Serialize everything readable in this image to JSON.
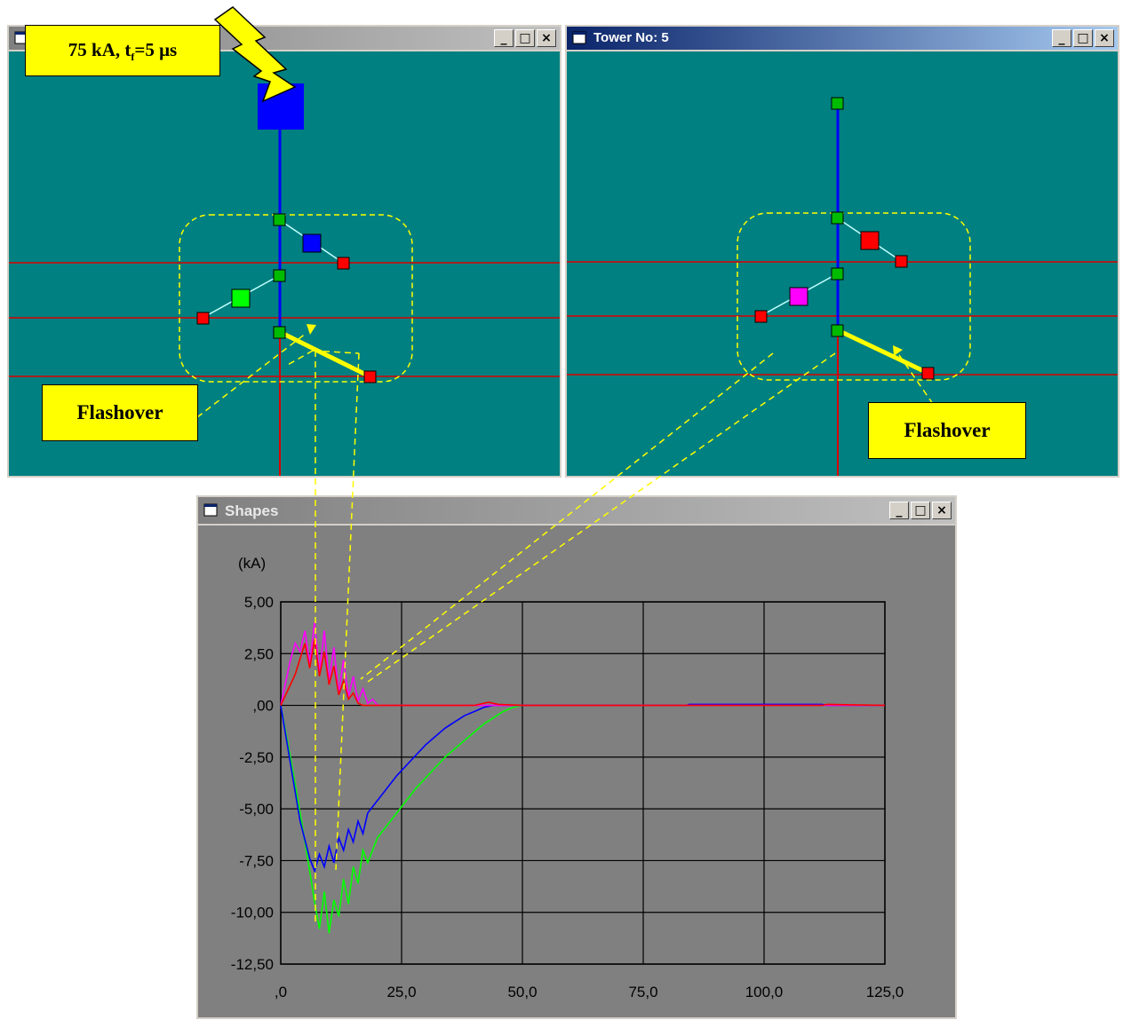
{
  "colors": {
    "teal": "#008080",
    "chart_bg": "#808080",
    "red_line": "#dd0000",
    "blue": "#0000ff",
    "green": "#00ff00",
    "magenta": "#ff00ff",
    "yellow": "#ffff00",
    "title_active": "#0a246a",
    "title_inactive": "#808080"
  },
  "lightning_label": "75 kA, t",
  "lightning_sub": "f",
  "lightning_rest": "=5 μs",
  "windows": {
    "left": {
      "title": ""
    },
    "right": {
      "title": "Tower No: 5"
    },
    "shapes": {
      "title": "Shapes"
    }
  },
  "flashover_left": "Flashover",
  "flashover_right": "Flashover",
  "window_buttons": {
    "minimize": "_",
    "maximize": "□",
    "close": "×"
  },
  "chart_data": {
    "type": "line",
    "title": "",
    "ylabel": "(kA)",
    "xlabel": "",
    "xlim": [
      0,
      125
    ],
    "ylim": [
      -12.5,
      5
    ],
    "x_ticks": [
      ",0",
      "25,0",
      "50,0",
      "75,0",
      "100,0",
      "125,0"
    ],
    "y_ticks": [
      "5,00",
      "2,50",
      ",00",
      "-2,50",
      "-5,00",
      "-7,50",
      "-10,00",
      "-12,50"
    ],
    "grid": true,
    "series": [
      {
        "color": "#00ff00",
        "x": [
          0,
          2,
          4,
          6,
          7,
          8,
          9,
          10,
          11,
          12,
          13,
          14,
          15,
          16,
          17,
          18,
          20,
          22,
          24,
          26,
          28,
          30,
          32,
          34,
          36,
          38,
          40,
          42,
          44,
          46,
          48,
          50,
          125
        ],
        "y": [
          0,
          -2.5,
          -5.2,
          -8.0,
          -9.5,
          -10.8,
          -9.0,
          -11.0,
          -9.4,
          -10.2,
          -8.4,
          -9.6,
          -7.8,
          -8.6,
          -7.0,
          -7.6,
          -6.4,
          -5.8,
          -5.2,
          -4.6,
          -4.0,
          -3.5,
          -3.0,
          -2.5,
          -2.1,
          -1.7,
          -1.3,
          -0.9,
          -0.6,
          -0.3,
          -0.1,
          0,
          0
        ]
      },
      {
        "color": "#0000ff",
        "x": [
          0,
          2,
          4,
          6,
          7,
          8,
          9,
          10,
          11,
          12,
          13,
          14,
          15,
          16,
          17,
          18,
          20,
          22,
          24,
          26,
          28,
          30,
          32,
          34,
          36,
          38,
          40,
          42,
          44,
          46,
          48,
          50,
          84,
          84.5,
          112,
          113,
          125
        ],
        "y": [
          0,
          -2.8,
          -5.6,
          -7.4,
          -8.0,
          -7.2,
          -7.8,
          -6.8,
          -7.6,
          -6.4,
          -7.0,
          -6.0,
          -6.6,
          -5.6,
          -6.2,
          -5.2,
          -4.6,
          -4.0,
          -3.4,
          -2.9,
          -2.4,
          -1.9,
          -1.5,
          -1.1,
          -0.8,
          -0.5,
          -0.3,
          -0.1,
          0,
          0,
          0,
          0,
          0,
          0.05,
          0.05,
          0,
          0
        ]
      },
      {
        "color": "#ff00ff",
        "x": [
          0,
          2,
          3,
          4,
          5,
          6,
          7,
          8,
          9,
          10,
          11,
          12,
          13,
          14,
          15,
          16,
          17,
          18,
          19,
          20,
          22,
          125
        ],
        "y": [
          0,
          2.2,
          3.0,
          2.6,
          3.6,
          2.0,
          4.0,
          1.6,
          3.6,
          1.2,
          2.8,
          0.6,
          2.2,
          0.4,
          1.4,
          0.2,
          0.8,
          0.1,
          0.3,
          0,
          0,
          0
        ]
      },
      {
        "color": "#ff0000",
        "x": [
          0,
          3,
          5,
          6,
          7,
          8,
          9,
          10,
          11,
          12,
          13,
          14,
          15,
          16,
          17,
          40,
          43,
          45,
          50,
          112,
          113,
          125
        ],
        "y": [
          0,
          1.5,
          3.0,
          1.8,
          3.2,
          1.4,
          2.6,
          1.0,
          1.9,
          0.5,
          1.2,
          0.3,
          0.6,
          0.1,
          0,
          0,
          0.15,
          0.05,
          0,
          0,
          0.05,
          0
        ]
      }
    ]
  }
}
